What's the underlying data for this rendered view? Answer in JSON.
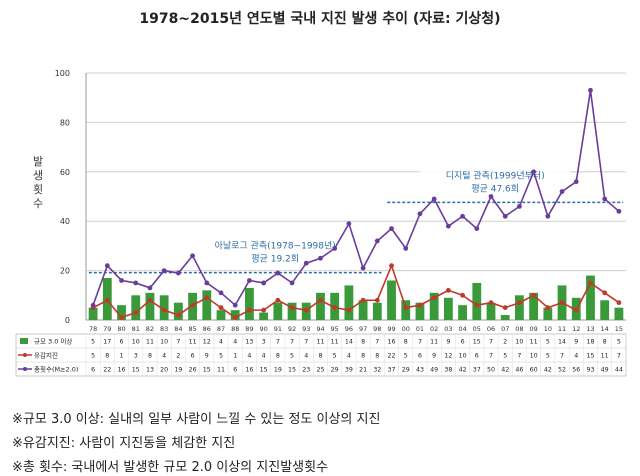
{
  "title": "1978~2015년 연도별 국내 지진 발생 추이 (자료: 기상청)",
  "notes": [
    "※규모 3.0 이상: 실내의 일부 사람이 느낄 수 있는 정도 이상의 지진",
    "※유감지진: 사람이 지진동을 체감한 지진",
    "※총 횟수: 국내에서 발생한 규모 2.0 이상의 지진발생횟수"
  ],
  "colors": {
    "bars": "#3a9a3a",
    "felt": "#c0392b",
    "total": "#6a3d9a",
    "avg": "#2e6da4",
    "grid": "#cfcfcf"
  },
  "chart_data": {
    "type": "bar",
    "ylabel": "발생 횟수",
    "ylim": [
      0,
      100
    ],
    "yticks": [
      0,
      20,
      40,
      60,
      80,
      100
    ],
    "categories": [
      "78",
      "79",
      "80",
      "81",
      "82",
      "83",
      "84",
      "85",
      "86",
      "87",
      "88",
      "89",
      "90",
      "91",
      "92",
      "93",
      "94",
      "95",
      "96",
      "97",
      "98",
      "99",
      "00",
      "01",
      "02",
      "03",
      "04",
      "05",
      "06",
      "07",
      "08",
      "09",
      "10",
      "11",
      "12",
      "13",
      "14",
      "15"
    ],
    "series": [
      {
        "name": "규모 3.0 이상",
        "kind": "bar",
        "values": [
          5,
          17,
          6,
          10,
          11,
          10,
          7,
          11,
          12,
          4,
          4,
          13,
          3,
          7,
          7,
          7,
          11,
          11,
          14,
          8,
          7,
          16,
          8,
          7,
          11,
          9,
          6,
          15,
          7,
          2,
          10,
          11,
          5,
          14,
          9,
          18,
          8,
          5
        ]
      },
      {
        "name": "유감지진",
        "kind": "line",
        "values": [
          5,
          8,
          1,
          3,
          8,
          4,
          2,
          6,
          9,
          5,
          1,
          4,
          4,
          8,
          5,
          4,
          8,
          5,
          4,
          8,
          8,
          22,
          5,
          6,
          9,
          12,
          10,
          6,
          7,
          5,
          7,
          10,
          5,
          7,
          4,
          15,
          11,
          7
        ]
      },
      {
        "name": "총횟수(M≥2.0)",
        "kind": "line",
        "values": [
          6,
          22,
          16,
          15,
          13,
          20,
          19,
          26,
          15,
          11,
          6,
          16,
          15,
          19,
          15,
          23,
          25,
          29,
          39,
          21,
          32,
          37,
          29,
          43,
          49,
          38,
          42,
          37,
          50,
          42,
          46,
          60,
          42,
          52,
          56,
          93,
          49,
          44
        ]
      }
    ],
    "annotations": [
      {
        "label": "아날로그 관측(1978~1998년)",
        "sublabel": "평균 19.2회",
        "value": 19.2,
        "from": "78",
        "to": "98"
      },
      {
        "label": "디지털 관측(1999년부터)",
        "sublabel": "평균 47.6회",
        "value": 47.6,
        "from": "99",
        "to": "15"
      }
    ]
  }
}
